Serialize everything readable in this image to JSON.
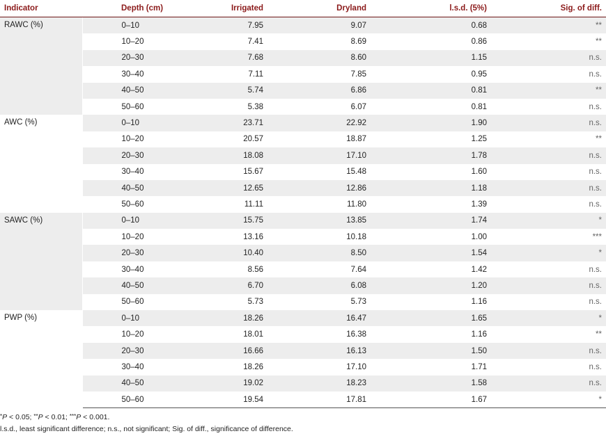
{
  "headers": {
    "indicator": "Indicator",
    "depth": "Depth (cm)",
    "irrigated": "Irrigated",
    "dryland": "Dryland",
    "lsd": "l.s.d. (5%)",
    "sig": "Sig. of diff."
  },
  "groups": [
    {
      "indicator": "RAWC (%)",
      "rows": [
        {
          "depth": "0–10",
          "irrigated": "7.95",
          "dryland": "9.07",
          "lsd": "0.68",
          "sig": "**"
        },
        {
          "depth": "10–20",
          "irrigated": "7.41",
          "dryland": "8.69",
          "lsd": "0.86",
          "sig": "**"
        },
        {
          "depth": "20–30",
          "irrigated": "7.68",
          "dryland": "8.60",
          "lsd": "1.15",
          "sig": "n.s."
        },
        {
          "depth": "30–40",
          "irrigated": "7.11",
          "dryland": "7.85",
          "lsd": "0.95",
          "sig": "n.s."
        },
        {
          "depth": "40–50",
          "irrigated": "5.74",
          "dryland": "6.86",
          "lsd": "0.81",
          "sig": "**"
        },
        {
          "depth": "50–60",
          "irrigated": "5.38",
          "dryland": "6.07",
          "lsd": "0.81",
          "sig": "n.s."
        }
      ]
    },
    {
      "indicator": "AWC (%)",
      "rows": [
        {
          "depth": "0–10",
          "irrigated": "23.71",
          "dryland": "22.92",
          "lsd": "1.90",
          "sig": "n.s."
        },
        {
          "depth": "10–20",
          "irrigated": "20.57",
          "dryland": "18.87",
          "lsd": "1.25",
          "sig": "**"
        },
        {
          "depth": "20–30",
          "irrigated": "18.08",
          "dryland": "17.10",
          "lsd": "1.78",
          "sig": "n.s."
        },
        {
          "depth": "30–40",
          "irrigated": "15.67",
          "dryland": "15.48",
          "lsd": "1.60",
          "sig": "n.s."
        },
        {
          "depth": "40–50",
          "irrigated": "12.65",
          "dryland": "12.86",
          "lsd": "1.18",
          "sig": "n.s."
        },
        {
          "depth": "50–60",
          "irrigated": "11.11",
          "dryland": "11.80",
          "lsd": "1.39",
          "sig": "n.s."
        }
      ]
    },
    {
      "indicator": "SAWC (%)",
      "rows": [
        {
          "depth": "0–10",
          "irrigated": "15.75",
          "dryland": "13.85",
          "lsd": "1.74",
          "sig": "*"
        },
        {
          "depth": "10–20",
          "irrigated": "13.16",
          "dryland": "10.18",
          "lsd": "1.00",
          "sig": "***"
        },
        {
          "depth": "20–30",
          "irrigated": "10.40",
          "dryland": "8.50",
          "lsd": "1.54",
          "sig": "*"
        },
        {
          "depth": "30–40",
          "irrigated": "8.56",
          "dryland": "7.64",
          "lsd": "1.42",
          "sig": "n.s."
        },
        {
          "depth": "40–50",
          "irrigated": "6.70",
          "dryland": "6.08",
          "lsd": "1.20",
          "sig": "n.s."
        },
        {
          "depth": "50–60",
          "irrigated": "5.73",
          "dryland": "5.73",
          "lsd": "1.16",
          "sig": "n.s."
        }
      ]
    },
    {
      "indicator": "PWP (%)",
      "rows": [
        {
          "depth": "0–10",
          "irrigated": "18.26",
          "dryland": "16.47",
          "lsd": "1.65",
          "sig": "*"
        },
        {
          "depth": "10–20",
          "irrigated": "18.01",
          "dryland": "16.38",
          "lsd": "1.16",
          "sig": "**"
        },
        {
          "depth": "20–30",
          "irrigated": "16.66",
          "dryland": "16.13",
          "lsd": "1.50",
          "sig": "n.s."
        },
        {
          "depth": "30–40",
          "irrigated": "18.26",
          "dryland": "17.10",
          "lsd": "1.71",
          "sig": "n.s."
        },
        {
          "depth": "40–50",
          "irrigated": "19.02",
          "dryland": "18.23",
          "lsd": "1.58",
          "sig": "n.s."
        },
        {
          "depth": "50–60",
          "irrigated": "19.54",
          "dryland": "17.81",
          "lsd": "1.67",
          "sig": "*"
        }
      ]
    }
  ],
  "footnotes": {
    "significance": {
      "m1": "*",
      "p1": "P",
      "t1": " < 0.05; ",
      "m2": "**",
      "p2": "P",
      "t2": " < 0.01; ",
      "m3": "***",
      "p3": "P",
      "t3": " < 0.001."
    },
    "abbreviations": "l.s.d., least significant difference; n.s., not significant; Sig. of diff., significance of difference."
  },
  "colors": {
    "header_text": "#8b1a1a",
    "stripe": "#ededed"
  }
}
